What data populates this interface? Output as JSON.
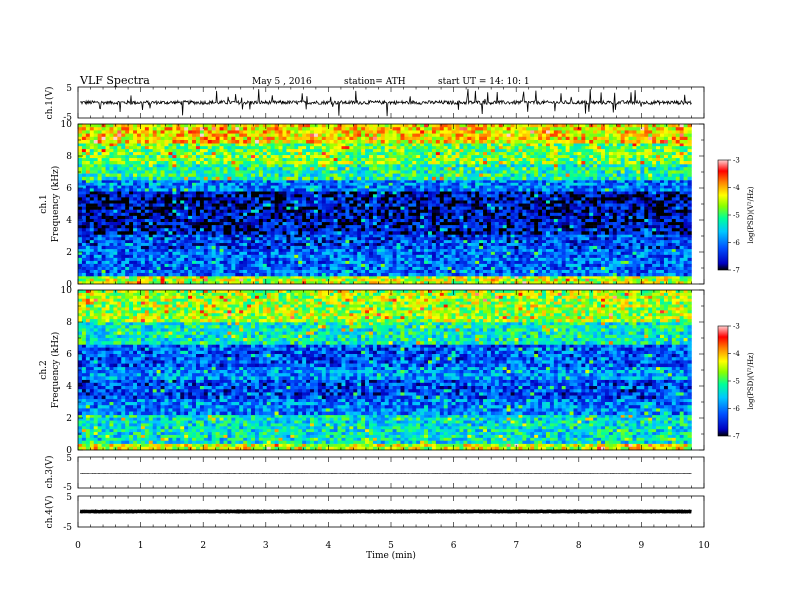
{
  "header": {
    "title": "VLF  Spectra",
    "date": "May 5  , 2016",
    "station": "station= ATH",
    "start": "start  UT  =    14: 10: 1"
  },
  "chart_data": [
    {
      "type": "line",
      "panel": "ch1",
      "ylabel": "ch.1(V)",
      "ylim": [
        -5,
        5
      ],
      "ytick_labels": [
        "5",
        "-5"
      ],
      "description": "noisy waveform centered near 0 V with occasional spikes",
      "baseline": 0
    },
    {
      "type": "heatmap",
      "panel": "spec1",
      "ylabel_top": "ch.1",
      "ylabel": "Frequency  (kHz)",
      "ylim": [
        0,
        10
      ],
      "ytick_labels": [
        "0",
        "2",
        "4",
        "6",
        "8",
        "10"
      ],
      "colorbar": {
        "label": "log(PSD)(V²/Hz)",
        "range": [
          -7,
          -3
        ],
        "tick_labels": [
          "-3",
          "-4",
          "-5",
          "-6",
          "-7"
        ],
        "colors": [
          "#000000",
          "#0000c8",
          "#0060ff",
          "#00c8ff",
          "#00ff9a",
          "#7fff00",
          "#ffff00",
          "#ff8000",
          "#ff0000",
          "#ffc8c8"
        ]
      },
      "bands_khz": [
        {
          "from": 0,
          "to": 0.5,
          "level": -4.5
        },
        {
          "from": 0.5,
          "to": 2.2,
          "level": -6.1
        },
        {
          "from": 2.2,
          "to": 3.1,
          "level": -6.3
        },
        {
          "from": 3.1,
          "to": 5.8,
          "level": -6.7
        },
        {
          "from": 5.8,
          "to": 6.5,
          "level": -6.0
        },
        {
          "from": 6.5,
          "to": 7.5,
          "level": -5.2
        },
        {
          "from": 7.5,
          "to": 8.8,
          "level": -4.8
        },
        {
          "from": 8.8,
          "to": 10,
          "level": -4.2
        }
      ]
    },
    {
      "type": "heatmap",
      "panel": "spec2",
      "ylabel_top": "ch.2",
      "ylabel": "Frequency  (kHz)",
      "ylim": [
        0,
        10
      ],
      "ytick_labels": [
        "0",
        "2",
        "4",
        "6",
        "8",
        "10"
      ],
      "colorbar": {
        "label": "log(PSD)(V²/Hz)",
        "range": [
          -7,
          -3
        ],
        "tick_labels": [
          "-3",
          "-4",
          "-5",
          "-6",
          "-7"
        ]
      },
      "bands_khz": [
        {
          "from": 0,
          "to": 0.4,
          "level": -4.4
        },
        {
          "from": 0.4,
          "to": 2.2,
          "level": -5.4
        },
        {
          "from": 2.2,
          "to": 3.2,
          "level": -6.0
        },
        {
          "from": 3.2,
          "to": 4.4,
          "level": -6.3
        },
        {
          "from": 4.4,
          "to": 5.2,
          "level": -5.9
        },
        {
          "from": 5.2,
          "to": 6.6,
          "level": -6.2
        },
        {
          "from": 6.6,
          "to": 8.0,
          "level": -5.3
        },
        {
          "from": 8.0,
          "to": 10,
          "level": -4.6
        }
      ]
    },
    {
      "type": "line",
      "panel": "ch3",
      "ylabel": "ch.3(V)",
      "ylim": [
        -5,
        5
      ],
      "ytick_labels": [
        "5",
        "-5"
      ],
      "description": "flat trace just below 0 V",
      "baseline": -0.3
    },
    {
      "type": "line",
      "panel": "ch4",
      "ylabel": "ch.4(V)",
      "ylim": [
        -5,
        5
      ],
      "ytick_labels": [
        "5",
        "-5"
      ],
      "description": "thick flat trace near 0 V",
      "baseline": 0
    }
  ],
  "xaxis": {
    "label": "Time  (min)",
    "xlim": [
      0,
      10
    ],
    "tick_labels": [
      "0",
      "1",
      "2",
      "3",
      "4",
      "5",
      "6",
      "7",
      "8",
      "9",
      "10"
    ],
    "data_end": 9.8
  }
}
